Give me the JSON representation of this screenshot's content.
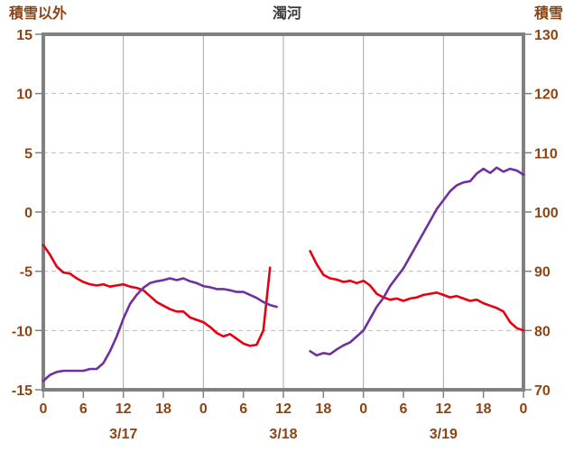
{
  "chart_data": {
    "type": "line",
    "title": "濁河",
    "legend": "none",
    "grid": true,
    "left_axis": {
      "label": "積雪以外",
      "min": -15,
      "max": 15,
      "tick_values": [
        15,
        10,
        5,
        0,
        -5,
        -10,
        -15
      ],
      "tick_labels": [
        "15",
        "10",
        "5",
        "0",
        "-5",
        "-10",
        "-15"
      ]
    },
    "right_axis": {
      "label": "積雪",
      "min": 70,
      "max": 130,
      "tick_values": [
        130,
        120,
        110,
        100,
        90,
        80,
        70
      ],
      "tick_labels": [
        "130",
        "120",
        "110",
        "100",
        "90",
        "80",
        "70"
      ]
    },
    "x_axis": {
      "hours_total": 72,
      "tick_interval": 6,
      "tick_labels": [
        "0",
        "6",
        "12",
        "18",
        "0",
        "6",
        "12",
        "18",
        "0",
        "6",
        "12",
        "18",
        "0"
      ],
      "gridline_hours": [
        12,
        24,
        36,
        48,
        60
      ],
      "date_labels": [
        "3/17",
        "3/18",
        "3/19"
      ],
      "date_center_hours": [
        12,
        36,
        60
      ]
    },
    "series": [
      {
        "id": "red-line",
        "axis": "left",
        "color": "#e60012",
        "values": [
          -2.8,
          -3.6,
          -4.6,
          -5.1,
          -5.2,
          -5.6,
          -5.9,
          -6.1,
          -6.2,
          -6.1,
          -6.3,
          -6.2,
          -6.1,
          -6.3,
          -6.4,
          -6.6,
          -7.1,
          -7.6,
          -7.9,
          -8.2,
          -8.4,
          -8.4,
          -8.9,
          -9.1,
          -9.3,
          -9.7,
          -10.2,
          -10.5,
          -10.3,
          -10.7,
          -11.1,
          -11.3,
          -11.2,
          -10.0,
          -4.7,
          null,
          null,
          null,
          null,
          null,
          -3.3,
          -4.4,
          -5.3,
          -5.6,
          -5.7,
          -5.9,
          -5.8,
          -6.0,
          -5.8,
          -6.2,
          -6.9,
          -7.2,
          -7.4,
          -7.3,
          -7.5,
          -7.3,
          -7.2,
          -7.0,
          -6.9,
          -6.8,
          -7.0,
          -7.2,
          -7.1,
          -7.3,
          -7.5,
          -7.4,
          -7.7,
          -7.9,
          -8.1,
          -8.4,
          -9.3,
          -9.8,
          -10.0
        ]
      },
      {
        "id": "purple-line",
        "axis": "right",
        "color": "#7030a0",
        "values": [
          71.5,
          72.5,
          73.0,
          73.2,
          73.2,
          73.2,
          73.2,
          73.5,
          73.5,
          74.5,
          76.5,
          79.0,
          82.0,
          84.5,
          86.0,
          87.2,
          88.0,
          88.3,
          88.5,
          88.8,
          88.5,
          88.8,
          88.3,
          88.0,
          87.5,
          87.3,
          87.0,
          87.0,
          86.8,
          86.5,
          86.5,
          86.0,
          85.5,
          84.8,
          84.3,
          84.0,
          null,
          null,
          null,
          null,
          76.5,
          75.8,
          76.2,
          76.0,
          76.8,
          77.5,
          78.0,
          79.0,
          80.0,
          82.0,
          84.0,
          85.5,
          87.5,
          89.0,
          90.5,
          92.5,
          94.5,
          96.5,
          98.5,
          100.5,
          102.0,
          103.5,
          104.5,
          105.0,
          105.2,
          106.5,
          107.3,
          106.6,
          107.5,
          106.8,
          107.3,
          107.0,
          106.3
        ]
      }
    ],
    "colors": {
      "labels": "#8b4513",
      "title": "#3c3c3c",
      "border": "#808080",
      "grid_vertical": "#a8a8a8",
      "grid_horizontal": "#bdbdbd"
    }
  }
}
